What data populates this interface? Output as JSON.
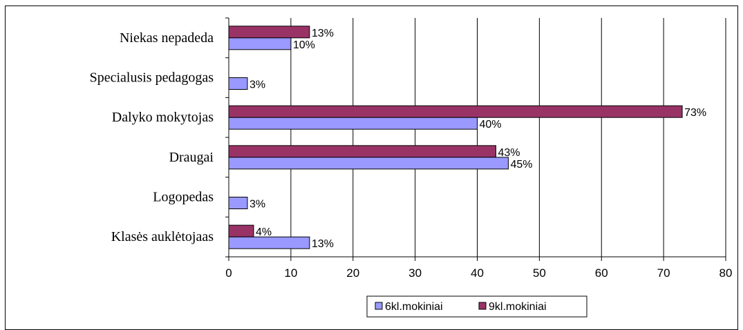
{
  "chart_data": {
    "type": "bar",
    "orientation": "horizontal",
    "categories": [
      "Niekas nepadeda",
      "Specialusis pedagogas",
      "Dalyko mokytojas",
      "Draugai",
      "Logopedas",
      "Klasės auklėtojaas"
    ],
    "series": [
      {
        "name": "6kl.mokiniai",
        "color": "#9999ff",
        "values": [
          10,
          3,
          40,
          45,
          3,
          13
        ],
        "labels": [
          "10%",
          "3%",
          "40%",
          "45%",
          "3%",
          "13%"
        ]
      },
      {
        "name": "9kl.mokiniai",
        "color": "#993366",
        "values": [
          13,
          null,
          73,
          43,
          null,
          4
        ],
        "labels": [
          "13%",
          "",
          "73%",
          "43%",
          "",
          "4%"
        ]
      }
    ],
    "xlim": [
      0,
      80
    ],
    "xticks": [
      0,
      10,
      20,
      30,
      40,
      50,
      60,
      70,
      80
    ],
    "grid": true,
    "legend": "bottom"
  }
}
